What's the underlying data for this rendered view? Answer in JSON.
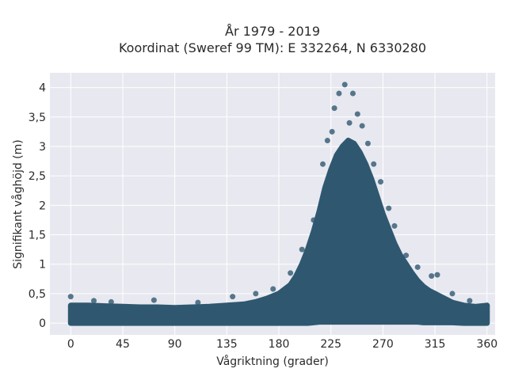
{
  "chart_data": {
    "type": "scatter",
    "title_lines": [
      "År 1979 - 2019",
      "Koordinat (Sweref 99 TM): E 332264, N 6330280"
    ],
    "xlabel": "Vågriktning (grader)",
    "ylabel": "Signifikant våghöjd (m)",
    "xlim": [
      -18,
      367
    ],
    "ylim": [
      -0.2,
      4.25
    ],
    "x_ticks": [
      0,
      45,
      90,
      135,
      180,
      225,
      270,
      315,
      360
    ],
    "y_ticks": [
      0,
      0.5,
      1,
      1.5,
      2,
      2.5,
      3,
      3.5,
      4
    ],
    "y_tick_labels": [
      "0",
      "0,5",
      "1",
      "1,5",
      "2",
      "2,5",
      "3",
      "3,5",
      "4"
    ],
    "grid": true,
    "colors": {
      "plot_bg": "#e8e8f0",
      "marker": "#2f5870"
    },
    "series": [
      {
        "points": [
          [
            0,
            0.45
          ],
          [
            20,
            0.38
          ],
          [
            35,
            0.36
          ],
          [
            72,
            0.39
          ],
          [
            110,
            0.35
          ],
          [
            140,
            0.45
          ],
          [
            160,
            0.5
          ],
          [
            175,
            0.58
          ],
          [
            190,
            0.85
          ],
          [
            200,
            1.25
          ],
          [
            210,
            1.75
          ],
          [
            218,
            2.7
          ],
          [
            222,
            3.1
          ],
          [
            226,
            3.25
          ],
          [
            228,
            3.65
          ],
          [
            232,
            3.9
          ],
          [
            237,
            4.05
          ],
          [
            241,
            3.4
          ],
          [
            244,
            3.9
          ],
          [
            248,
            3.55
          ],
          [
            252,
            3.35
          ],
          [
            257,
            3.05
          ],
          [
            262,
            2.7
          ],
          [
            268,
            2.4
          ],
          [
            275,
            1.95
          ],
          [
            280,
            1.65
          ],
          [
            290,
            1.15
          ],
          [
            300,
            0.95
          ],
          [
            312,
            0.8
          ],
          [
            317,
            0.82
          ],
          [
            330,
            0.5
          ],
          [
            345,
            0.38
          ],
          [
            360,
            0.3
          ]
        ]
      }
    ],
    "envelope": {
      "x": [
        0,
        15,
        30,
        45,
        60,
        75,
        90,
        105,
        120,
        135,
        150,
        160,
        170,
        180,
        190,
        195,
        200,
        205,
        210,
        215,
        220,
        225,
        230,
        235,
        240,
        245,
        250,
        255,
        260,
        265,
        270,
        275,
        280,
        285,
        290,
        295,
        300,
        305,
        310,
        315,
        320,
        325,
        330,
        340,
        350,
        360
      ],
      "upper": [
        0.3,
        0.3,
        0.29,
        0.28,
        0.27,
        0.27,
        0.26,
        0.27,
        0.28,
        0.3,
        0.32,
        0.36,
        0.42,
        0.5,
        0.65,
        0.8,
        1.0,
        1.25,
        1.55,
        1.9,
        2.3,
        2.6,
        2.85,
        3.0,
        3.1,
        3.05,
        2.9,
        2.7,
        2.45,
        2.15,
        1.85,
        1.6,
        1.35,
        1.15,
        1.0,
        0.85,
        0.72,
        0.62,
        0.55,
        0.5,
        0.45,
        0.4,
        0.35,
        0.3,
        0.28,
        0.3
      ],
      "lower": [
        0.0,
        0.0,
        0.0,
        0.0,
        0.0,
        0.0,
        0.0,
        0.0,
        0.0,
        0.0,
        0.0,
        0.0,
        0.0,
        0.0,
        0.0,
        0.0,
        0.0,
        0.0,
        0.01,
        0.02,
        0.02,
        0.02,
        0.02,
        0.02,
        0.02,
        0.02,
        0.02,
        0.02,
        0.02,
        0.02,
        0.02,
        0.02,
        0.02,
        0.02,
        0.02,
        0.02,
        0.02,
        0.01,
        0.01,
        0.01,
        0.01,
        0.01,
        0.01,
        0.0,
        0.0,
        0.0
      ]
    }
  }
}
